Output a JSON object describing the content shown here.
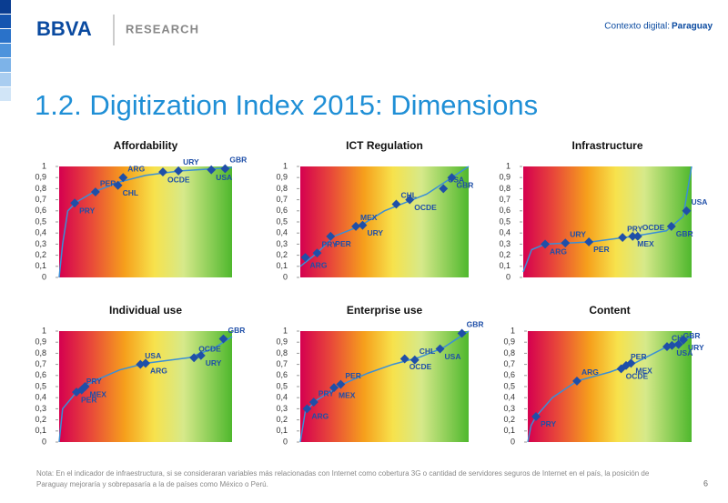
{
  "header": {
    "brand": "BBVA",
    "unit": "RESEARCH",
    "context_label": "Contexto digital:",
    "context_country": "Paraguay"
  },
  "title": "1.2. Digitization Index 2015: Dimensions",
  "note": [
    "Nota: En el indicador de infraestructura, si se consideraran variables más relacionadas con Internet como cobertura 3G o cantidad de servidores seguros de Internet en el país, la posición de",
    "Paraguay mejoraría y sobrepasaría a la de países como México o Perú."
  ],
  "page_number": "6",
  "chart_data": [
    {
      "type": "scatter",
      "title": "Affordability",
      "xlim": [
        0,
        1
      ],
      "ylim": [
        0,
        1
      ],
      "yticks": [
        0,
        {
          "value": 0.1,
          "label": "0,1"
        },
        {
          "value": 0.2,
          "label": "0,2"
        },
        {
          "value": 0.3,
          "label": "0,3"
        },
        {
          "value": 0.4,
          "label": "0,4"
        },
        {
          "value": 0.5,
          "label": "0,5"
        },
        {
          "value": 0.6,
          "label": "0,6"
        },
        {
          "value": 0.7,
          "label": "0,7"
        },
        {
          "value": 0.8,
          "label": "0,8"
        },
        {
          "value": 0.9,
          "label": "0,9"
        },
        1
      ],
      "points": {
        "labels": [
          "PRY",
          "PER",
          "CHL",
          "ARG",
          "OCDE",
          "URY",
          "USA",
          "GBR"
        ],
        "x": [
          0.09,
          0.21,
          0.34,
          0.37,
          0.6,
          0.69,
          0.88,
          0.96
        ],
        "y": [
          0.67,
          0.77,
          0.83,
          0.9,
          0.95,
          0.96,
          0.97,
          0.98
        ],
        "color": "#1f4fa8"
      },
      "curve": {
        "x": [
          0,
          0.02,
          0.05,
          0.1,
          0.2,
          0.35,
          0.5,
          0.7,
          1
        ],
        "y": [
          0,
          0.3,
          0.6,
          0.68,
          0.77,
          0.86,
          0.92,
          0.96,
          0.99
        ],
        "color": "#3a8fd6"
      }
    },
    {
      "type": "scatter",
      "title": "ICT Regulation",
      "xlim": [
        0,
        1
      ],
      "ylim": [
        0,
        1
      ],
      "yticks": [
        0,
        {
          "value": 0.1,
          "label": "0,1"
        },
        {
          "value": 0.2,
          "label": "0,2"
        },
        {
          "value": 0.3,
          "label": "0,3"
        },
        {
          "value": 0.4,
          "label": "0,4"
        },
        {
          "value": 0.5,
          "label": "0,5"
        },
        {
          "value": 0.6,
          "label": "0,6"
        },
        {
          "value": 0.7,
          "label": "0,7"
        },
        {
          "value": 0.8,
          "label": "0,8"
        },
        {
          "value": 0.9,
          "label": "0,9"
        },
        1
      ],
      "points": {
        "labels": [
          "ARG",
          "PRY",
          "PER",
          "MEX",
          "URY",
          "CHL",
          "OCDE",
          "USA",
          "GBR"
        ],
        "x": [
          0.03,
          0.1,
          0.18,
          0.33,
          0.37,
          0.57,
          0.65,
          0.85,
          0.9
        ],
        "y": [
          0.18,
          0.22,
          0.37,
          0.46,
          0.47,
          0.66,
          0.7,
          0.8,
          0.9
        ],
        "color": "#1f4fa8"
      },
      "curve": {
        "x": [
          0,
          0.1,
          0.2,
          0.35,
          0.5,
          0.6,
          0.75,
          0.9,
          1
        ],
        "y": [
          0.1,
          0.22,
          0.37,
          0.46,
          0.6,
          0.66,
          0.75,
          0.9,
          1
        ],
        "color": "#3a8fd6"
      }
    },
    {
      "type": "scatter",
      "title": "Infrastructure",
      "xlim": [
        0,
        1
      ],
      "ylim": [
        0,
        1
      ],
      "yticks": [
        0,
        {
          "value": 0.1,
          "label": "0,1"
        },
        {
          "value": 0.2,
          "label": "0,2"
        },
        {
          "value": 0.3,
          "label": "0,3"
        },
        {
          "value": 0.4,
          "label": "0,4"
        },
        {
          "value": 0.5,
          "label": "0,5"
        },
        {
          "value": 0.6,
          "label": "0,6"
        },
        {
          "value": 0.7,
          "label": "0,7"
        },
        {
          "value": 0.8,
          "label": "0,8"
        },
        {
          "value": 0.9,
          "label": "0,9"
        },
        1
      ],
      "points": {
        "labels": [
          "ARG",
          "URY",
          "PER",
          "PRY",
          "MEX",
          "OCDE",
          "GBR",
          "USA"
        ],
        "x": [
          0.13,
          0.25,
          0.39,
          0.59,
          0.65,
          0.68,
          0.88,
          0.97
        ],
        "y": [
          0.3,
          0.31,
          0.32,
          0.36,
          0.37,
          0.37,
          0.46,
          0.6
        ],
        "color": "#1f4fa8"
      },
      "curve": {
        "x": [
          0,
          0.05,
          0.13,
          0.4,
          0.65,
          0.85,
          0.95,
          1
        ],
        "y": [
          0.05,
          0.25,
          0.3,
          0.32,
          0.37,
          0.42,
          0.55,
          1
        ],
        "color": "#3a8fd6"
      }
    },
    {
      "type": "scatter",
      "title": "Individual use",
      "xlim": [
        0,
        1
      ],
      "ylim": [
        0,
        1
      ],
      "yticks": [
        0,
        {
          "value": 0.1,
          "label": "0,1"
        },
        {
          "value": 0.2,
          "label": "0,2"
        },
        {
          "value": 0.3,
          "label": "0,3"
        },
        {
          "value": 0.4,
          "label": "0,4"
        },
        {
          "value": 0.5,
          "label": "0,5"
        },
        {
          "value": 0.6,
          "label": "0,6"
        },
        {
          "value": 0.7,
          "label": "0,7"
        },
        {
          "value": 0.8,
          "label": "0,8"
        },
        {
          "value": 0.9,
          "label": "0,9"
        },
        1
      ],
      "points": {
        "labels": [
          "PER",
          "PRY",
          "MEX",
          "USA",
          "ARG",
          "OCDE",
          "URY",
          "GBR"
        ],
        "x": [
          0.1,
          0.13,
          0.15,
          0.47,
          0.5,
          0.78,
          0.82,
          0.95
        ],
        "y": [
          0.45,
          0.47,
          0.5,
          0.7,
          0.71,
          0.76,
          0.78,
          0.93
        ],
        "color": "#1f4fa8"
      },
      "curve": {
        "x": [
          0,
          0.02,
          0.1,
          0.2,
          0.35,
          0.5,
          0.75,
          0.9,
          1
        ],
        "y": [
          0,
          0.3,
          0.45,
          0.55,
          0.65,
          0.71,
          0.76,
          0.85,
          0.95
        ],
        "color": "#3a8fd6"
      }
    },
    {
      "type": "scatter",
      "title": "Enterprise use",
      "xlim": [
        0,
        1
      ],
      "ylim": [
        0,
        1
      ],
      "yticks": [
        0,
        {
          "value": 0.1,
          "label": "0,1"
        },
        {
          "value": 0.2,
          "label": "0,2"
        },
        {
          "value": 0.3,
          "label": "0,3"
        },
        {
          "value": 0.4,
          "label": "0,4"
        },
        {
          "value": 0.5,
          "label": "0,5"
        },
        {
          "value": 0.6,
          "label": "0,6"
        },
        {
          "value": 0.7,
          "label": "0,7"
        },
        {
          "value": 0.8,
          "label": "0,8"
        },
        {
          "value": 0.9,
          "label": "0,9"
        },
        1
      ],
      "points": {
        "labels": [
          "ARG",
          "PRY",
          "MEX",
          "PER",
          "OCDE",
          "CHL",
          "USA",
          "GBR"
        ],
        "x": [
          0.04,
          0.08,
          0.2,
          0.24,
          0.62,
          0.68,
          0.83,
          0.96
        ],
        "y": [
          0.3,
          0.36,
          0.49,
          0.52,
          0.75,
          0.74,
          0.84,
          0.98
        ],
        "color": "#1f4fa8"
      },
      "curve": {
        "x": [
          0,
          0.03,
          0.1,
          0.25,
          0.4,
          0.55,
          0.7,
          0.85,
          1
        ],
        "y": [
          0,
          0.28,
          0.38,
          0.52,
          0.62,
          0.7,
          0.76,
          0.85,
          1
        ],
        "color": "#3a8fd6"
      }
    },
    {
      "type": "scatter",
      "title": "Content",
      "xlim": [
        0,
        1
      ],
      "ylim": [
        0,
        1
      ],
      "yticks": [
        0,
        {
          "value": 0.1,
          "label": "0,1"
        },
        {
          "value": 0.2,
          "label": "0,2"
        },
        {
          "value": 0.3,
          "label": "0,3"
        },
        {
          "value": 0.4,
          "label": "0,4"
        },
        {
          "value": 0.5,
          "label": "0,5"
        },
        {
          "value": 0.6,
          "label": "0,6"
        },
        {
          "value": 0.7,
          "label": "0,7"
        },
        {
          "value": 0.8,
          "label": "0,8"
        },
        {
          "value": 0.9,
          "label": "0,9"
        },
        1
      ],
      "points": {
        "labels": [
          "PRY",
          "ARG",
          "OCDE",
          "PER",
          "MEX",
          "CHL",
          "USA",
          "GBR",
          "URY"
        ],
        "x": [
          0.05,
          0.3,
          0.57,
          0.6,
          0.63,
          0.85,
          0.88,
          0.92,
          0.95
        ],
        "y": [
          0.23,
          0.55,
          0.66,
          0.69,
          0.71,
          0.86,
          0.87,
          0.88,
          0.92
        ],
        "color": "#1f4fa8"
      },
      "curve": {
        "x": [
          0,
          0.02,
          0.05,
          0.15,
          0.3,
          0.5,
          0.65,
          0.85,
          1
        ],
        "y": [
          0,
          0.15,
          0.23,
          0.4,
          0.55,
          0.63,
          0.71,
          0.86,
          0.95
        ],
        "color": "#3a8fd6"
      }
    }
  ]
}
